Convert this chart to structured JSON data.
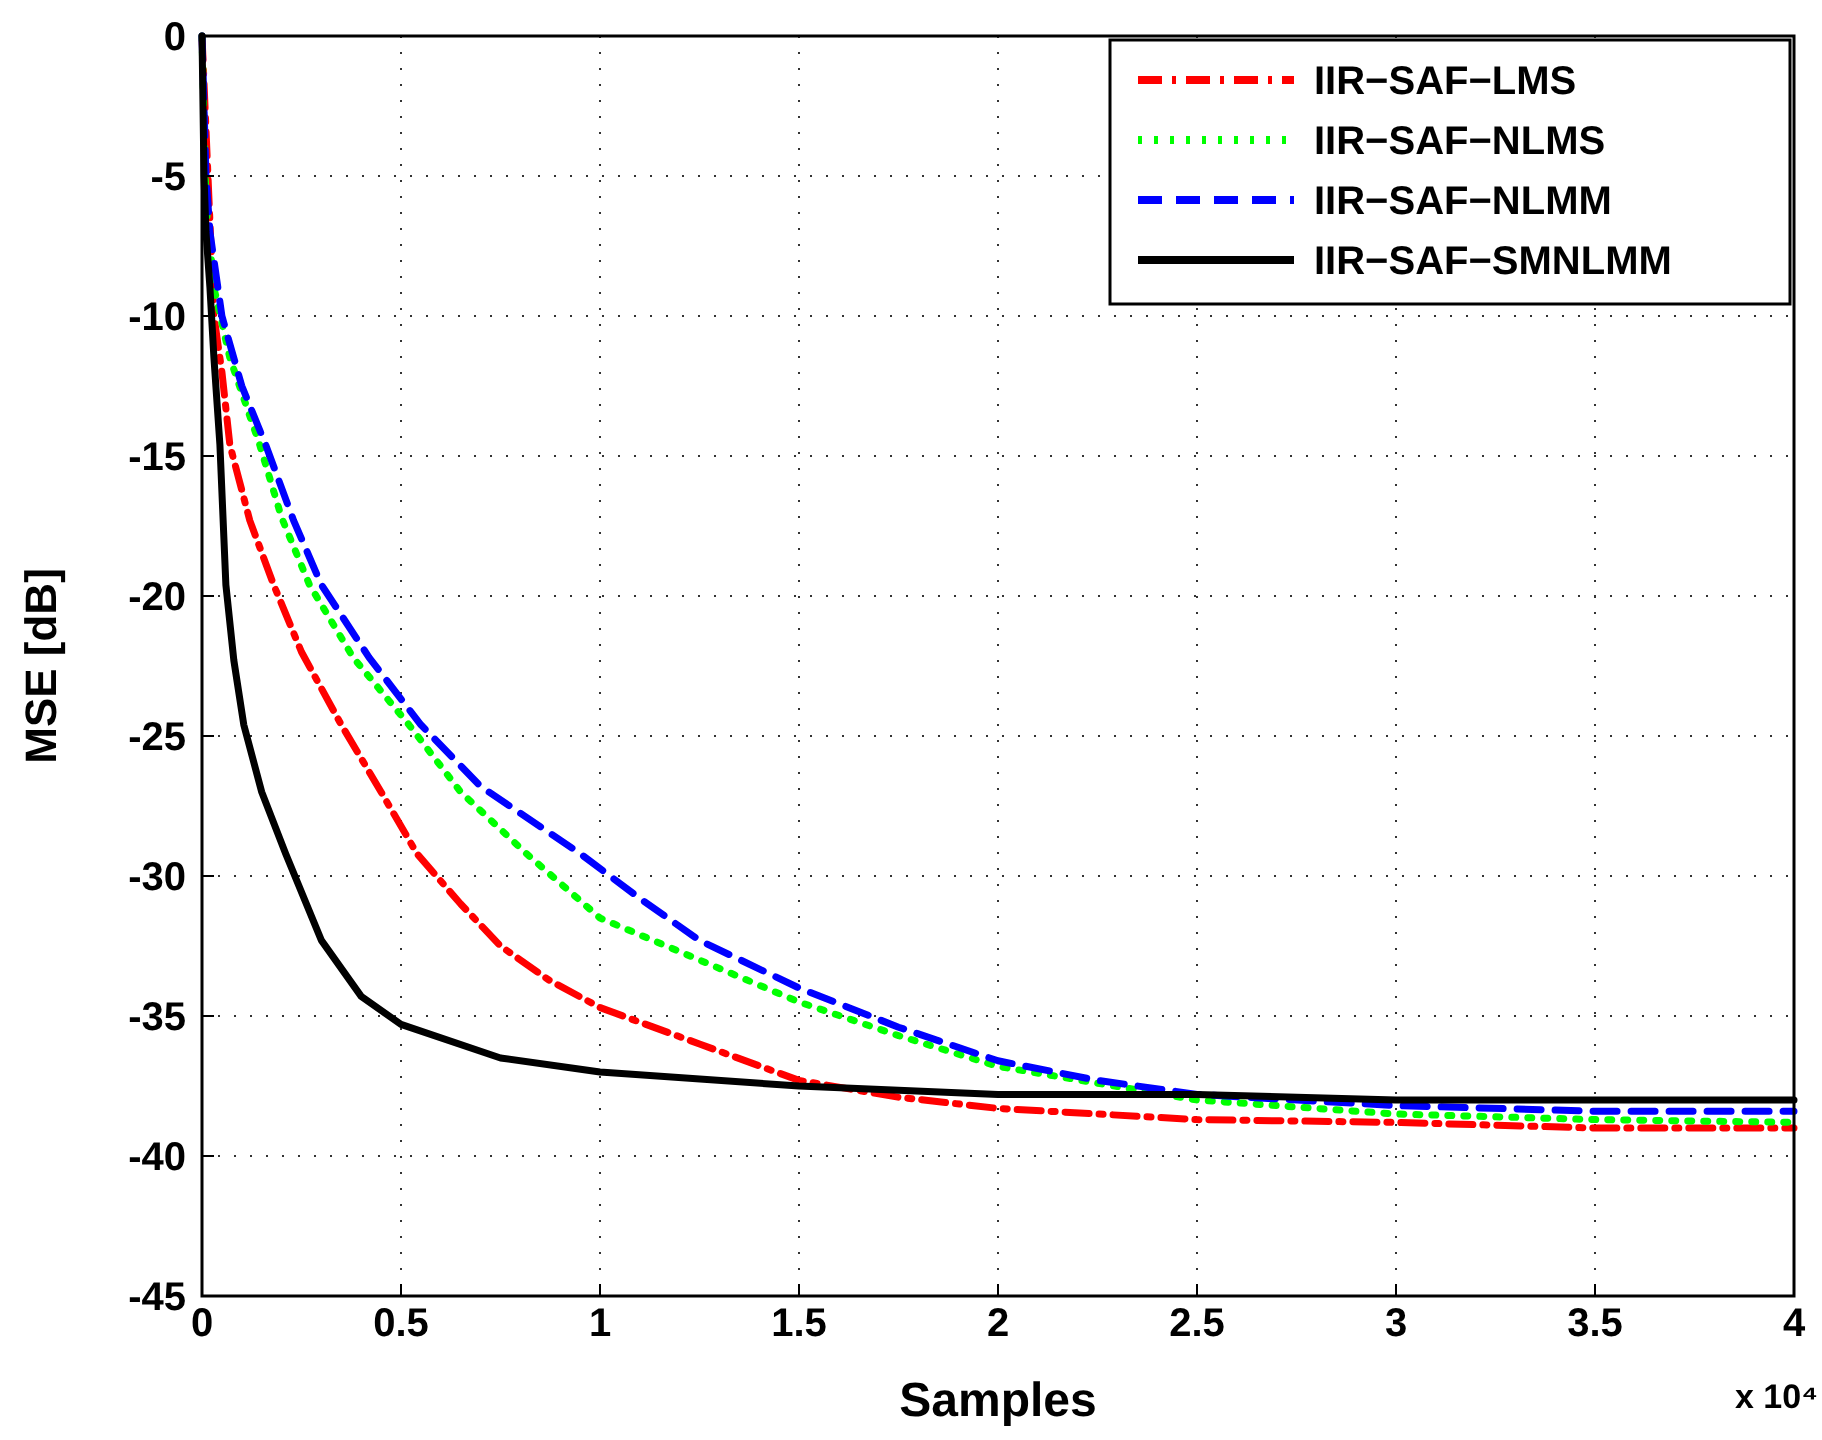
{
  "chart_data": {
    "type": "line",
    "xlabel": "Samples",
    "ylabel": "MSE [dB]",
    "xlim": [
      0,
      4
    ],
    "ylim": [
      -45,
      0
    ],
    "xticks": [
      0,
      0.5,
      1,
      1.5,
      2,
      2.5,
      3,
      3.5,
      4
    ],
    "yticks": [
      -45,
      -40,
      -35,
      -30,
      -25,
      -20,
      -15,
      -10,
      -5,
      0
    ],
    "grid": true,
    "legend": "top right",
    "annotations": [
      "x 10⁴"
    ],
    "series": [
      {
        "name": "IIR−SAF−LMS",
        "color": "#ff0000",
        "line_style": "dashdot",
        "x": [
          0,
          0.03,
          0.05,
          0.07,
          0.12,
          0.18,
          0.25,
          0.35,
          0.45,
          0.54,
          0.65,
          0.75,
          0.87,
          1,
          1.25,
          1.5,
          1.75,
          2,
          2.5,
          3,
          3.5,
          4
        ],
        "values": [
          0,
          -10,
          -12,
          -14.6,
          -17.3,
          -19.6,
          -22,
          -24.6,
          -27,
          -29.2,
          -31,
          -32.5,
          -33.7,
          -34.7,
          -36,
          -37.3,
          -37.9,
          -38.3,
          -38.7,
          -38.8,
          -39,
          -39
        ]
      },
      {
        "name": "IIR−SAF−NLMS",
        "color": "#00ff00",
        "line_style": "dotted",
        "x": [
          0,
          0.01,
          0.03,
          0.07,
          0.145,
          0.2,
          0.27,
          0.38,
          0.52,
          0.65,
          0.815,
          1,
          1.25,
          1.5,
          1.75,
          2,
          2.5,
          3,
          3.5,
          4
        ],
        "values": [
          0,
          -6,
          -9,
          -11.5,
          -14.6,
          -17.2,
          -19.6,
          -22.2,
          -24.6,
          -27,
          -29.2,
          -31.5,
          -33,
          -34.5,
          -35.7,
          -36.8,
          -38,
          -38.5,
          -38.7,
          -38.8
        ]
      },
      {
        "name": "IIR−SAF−NLMM",
        "color": "#0000ff",
        "line_style": "dashed",
        "x": [
          0,
          0.01,
          0.02,
          0.05,
          0.1,
          0.16,
          0.23,
          0.3,
          0.42,
          0.55,
          0.7,
          0.95,
          1.1,
          1.25,
          1.5,
          1.75,
          2,
          2.25,
          2.5,
          3,
          3.5,
          4
        ],
        "values": [
          0,
          -5,
          -7,
          -10,
          -12.5,
          -14.6,
          -17.3,
          -19.6,
          -22.2,
          -24.6,
          -26.8,
          -29.2,
          -30.8,
          -32.3,
          -34,
          -35.4,
          -36.6,
          -37.3,
          -37.8,
          -38.2,
          -38.4,
          -38.4
        ]
      },
      {
        "name": "IIR−SAF−SMNLMM",
        "color": "#000000",
        "line_style": "solid",
        "x": [
          0,
          0.005,
          0.01,
          0.02,
          0.03,
          0.045,
          0.06,
          0.08,
          0.105,
          0.15,
          0.21,
          0.3,
          0.4,
          0.5,
          0.75,
          1,
          1.5,
          2,
          2.5,
          3,
          3.5,
          4
        ],
        "values": [
          0,
          -5,
          -7,
          -9,
          -11.5,
          -14.6,
          -19.6,
          -22.3,
          -24.6,
          -27,
          -29.2,
          -32.3,
          -34.3,
          -35.3,
          -36.5,
          -37,
          -37.5,
          -37.8,
          -37.8,
          -38,
          -38,
          -38
        ]
      }
    ]
  }
}
